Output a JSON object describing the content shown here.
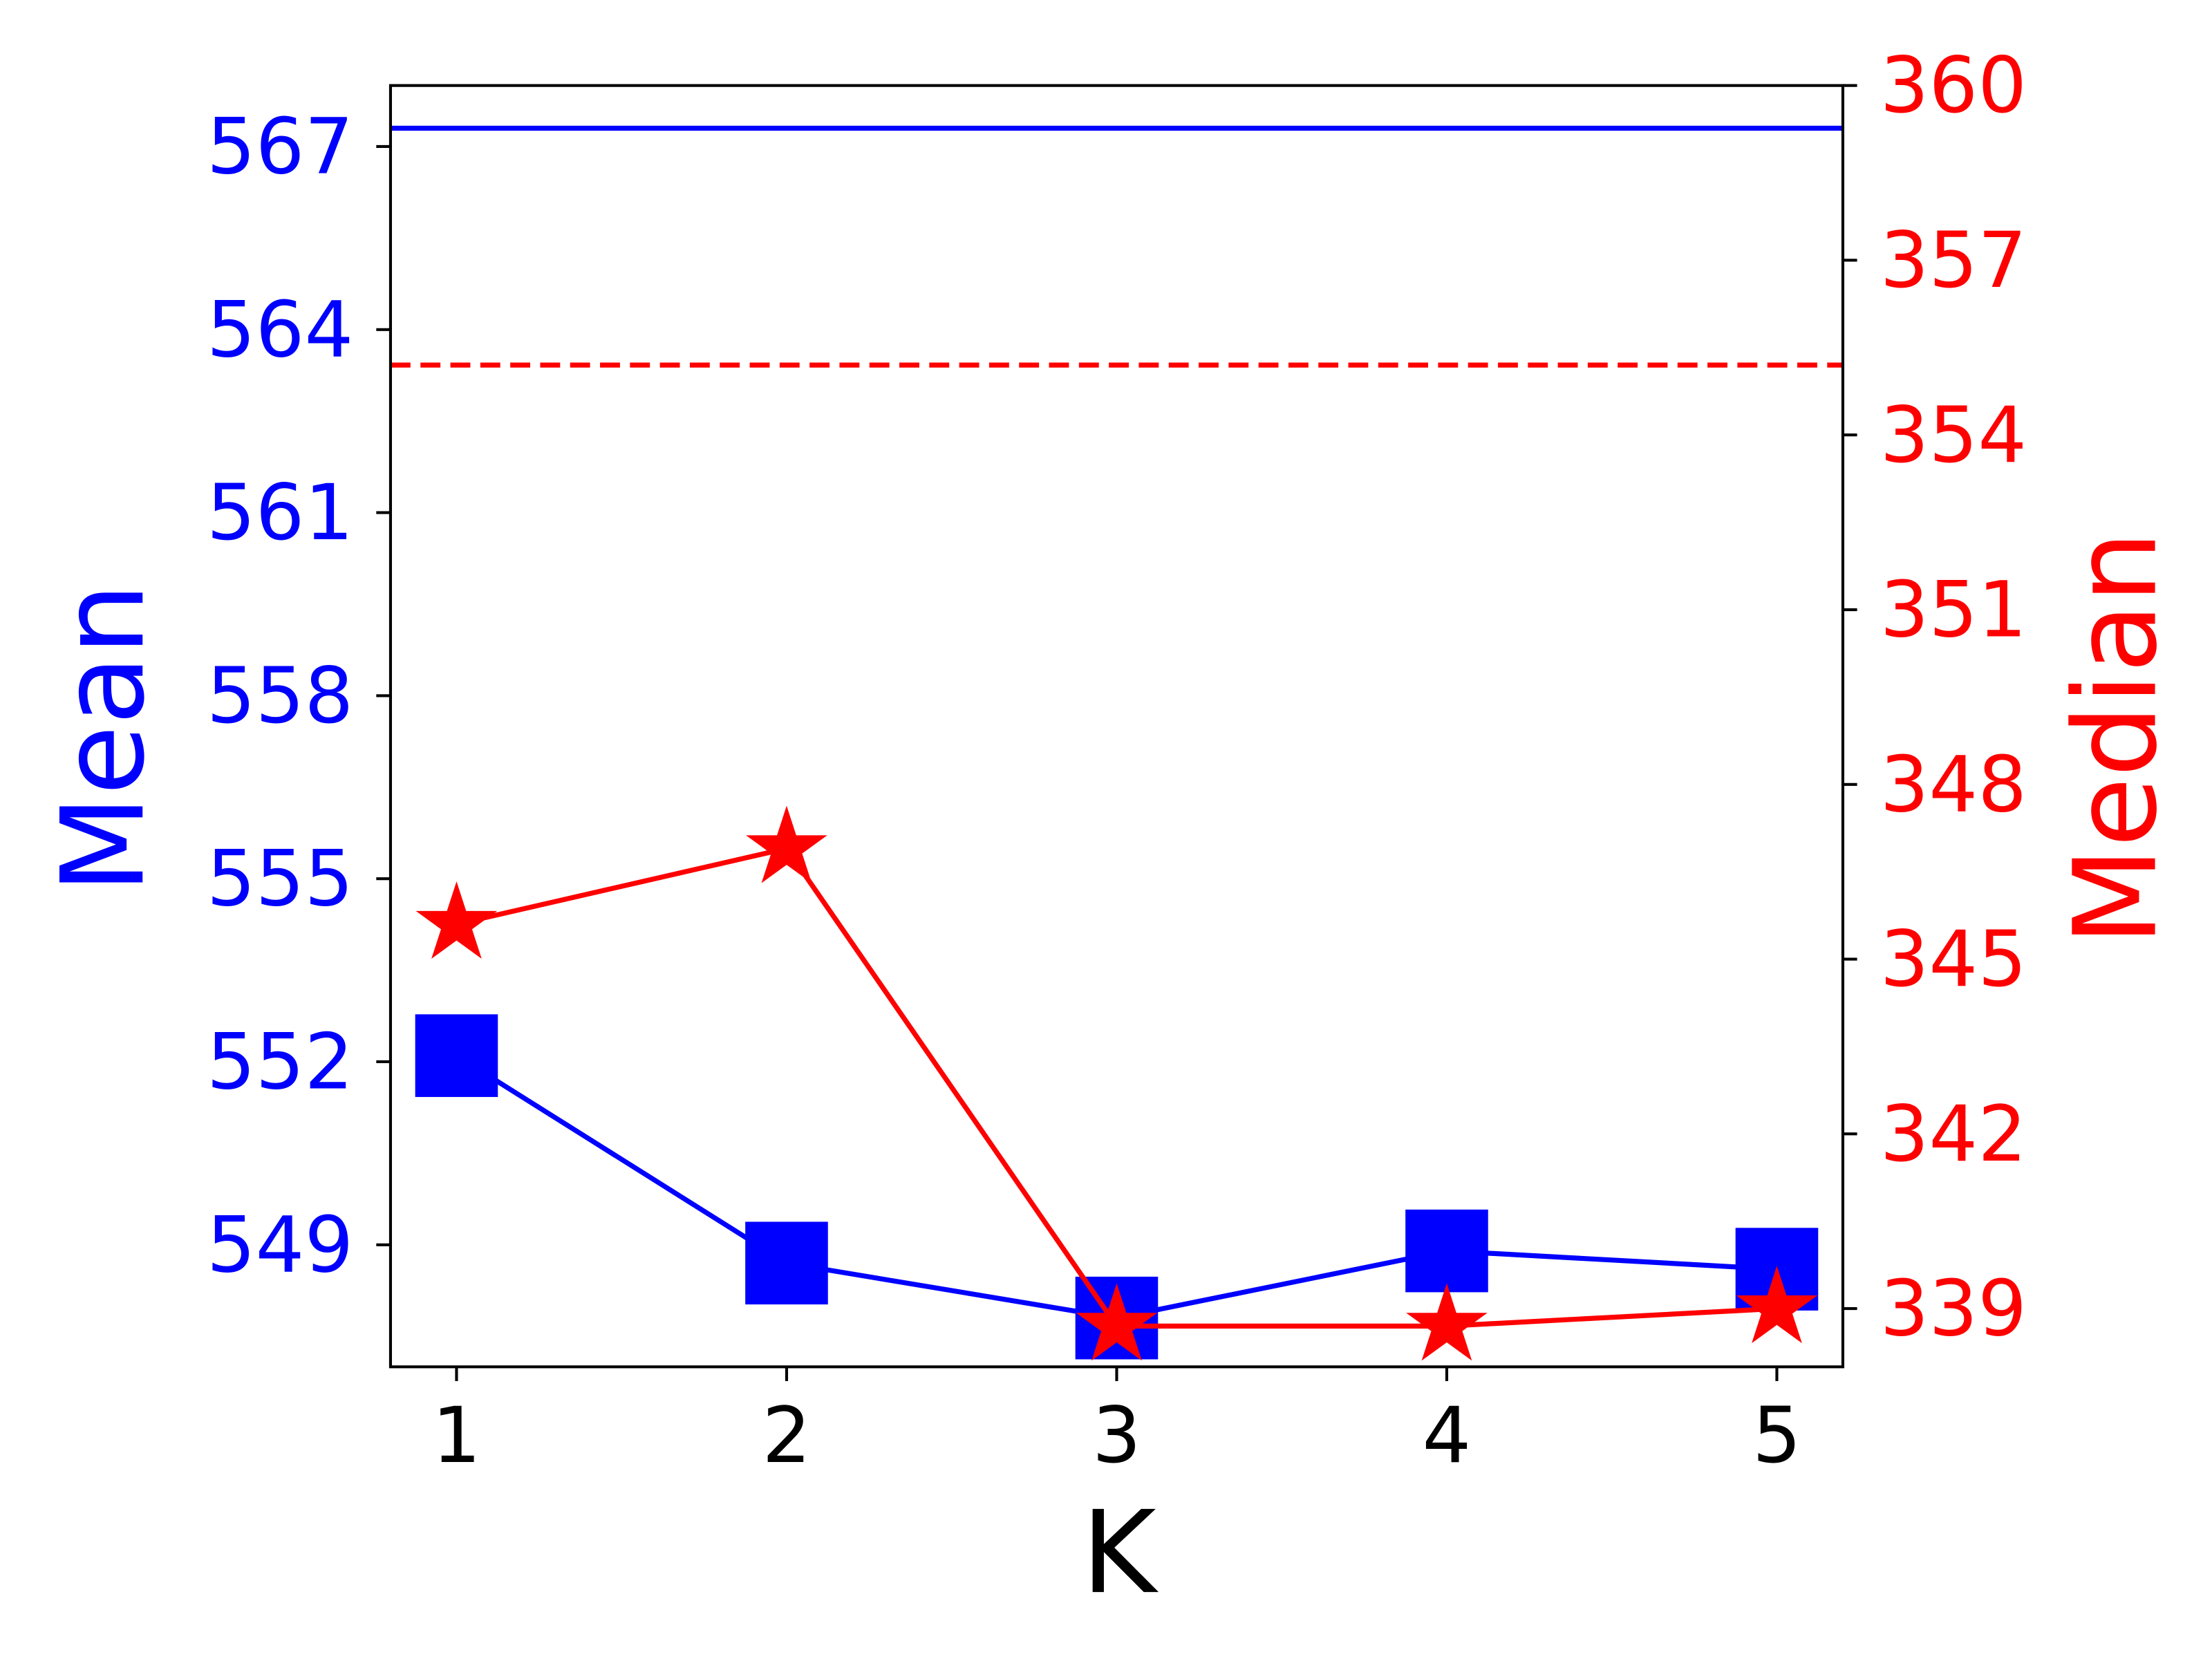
{
  "chart_data": {
    "type": "line",
    "x_label": "K",
    "y_label": "Mean",
    "y2_label": "Median",
    "x": [
      1,
      2,
      3,
      4,
      5
    ],
    "xlim": [
      0.8,
      5.2
    ],
    "xticks": [
      1,
      2,
      3,
      4,
      5
    ],
    "ylim": [
      547.0,
      568.0
    ],
    "yticks": [
      549,
      552,
      555,
      558,
      561,
      564,
      567
    ],
    "y_color": "#0000ff",
    "y2lim": [
      338.0,
      360.0
    ],
    "y2ticks": [
      339,
      342,
      345,
      348,
      351,
      354,
      357,
      360
    ],
    "y2_color": "#ff0000",
    "series": [
      {
        "color": "#0000ff",
        "marker": "square",
        "values": [
          552.1,
          548.7,
          547.8,
          548.9,
          548.6
        ]
      },
      {
        "color": "#ff0000",
        "marker": "star",
        "axis": "y2",
        "values": [
          345.6,
          346.9,
          338.7,
          338.7,
          339.0
        ]
      }
    ],
    "reference_lines": [
      {
        "value": 567.3,
        "color": "#0000ff",
        "style": "solid"
      },
      {
        "value": 355.2,
        "color": "#ff0000",
        "style": "dashed",
        "axis": "y2"
      }
    ]
  }
}
